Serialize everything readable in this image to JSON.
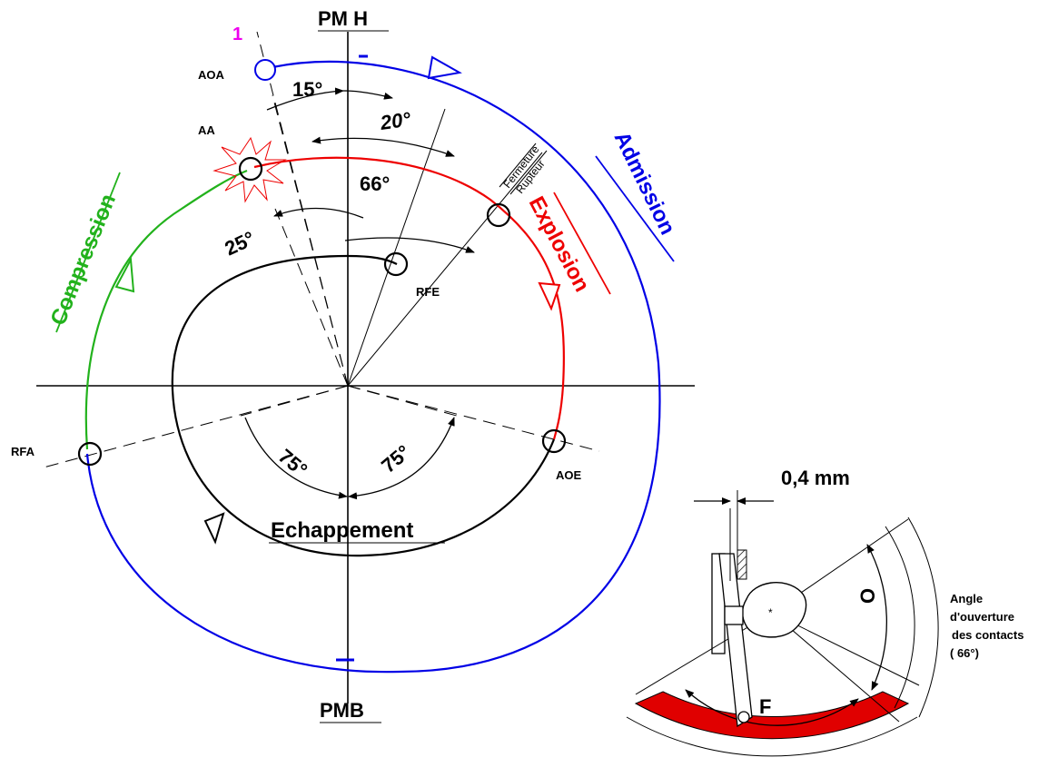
{
  "labels": {
    "pmh": "PM H",
    "pmb": "PMB",
    "aoa": "AOA",
    "aa": "AA",
    "rfe": "RFE",
    "rfa": "RFA",
    "aoe": "AOE",
    "one": "1",
    "fermeture": "Fermeture",
    "rupteur": "Rupteur"
  },
  "phases": {
    "admission": "Admission",
    "compression": "Compression",
    "explosion": "Explosion",
    "echappement": "Echappement"
  },
  "angles": {
    "a15": "15°",
    "a20": "20°",
    "a66": "66°",
    "a25": "25°",
    "a75_left": "75°",
    "a75_right": "75°"
  },
  "inset": {
    "gap": "0,4 mm",
    "o": "O",
    "f": "F",
    "caption_1": "Angle",
    "caption_2": "d'ouverture",
    "caption_3": "des contacts",
    "caption_4": "( 66°)"
  },
  "colors": {
    "admission": "#0000e6",
    "compression": "#22b21c",
    "explosion": "#ee0000",
    "echappement": "#000000",
    "marker_1": "#ee00ee",
    "cam_sector": "#e00000"
  }
}
